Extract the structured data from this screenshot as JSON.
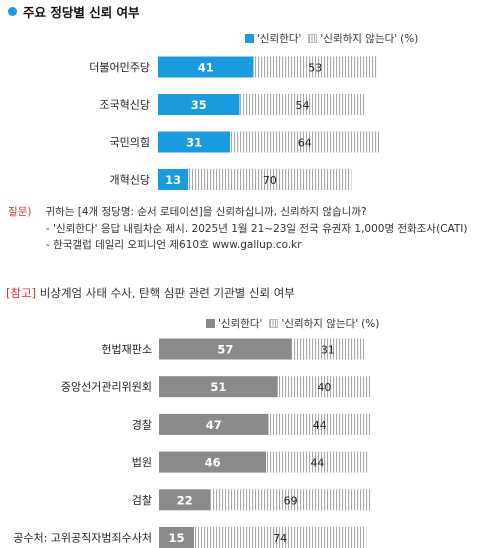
{
  "section1": {
    "title": "주요 정당별 신뢰 여부",
    "legend": {
      "trust": "'신뢰한다'",
      "distrust": "'신뢰하지 않는다'",
      "unit": "(%)"
    }
  },
  "notes": {
    "question_tag": "질문)",
    "question_text": "귀하는 [4개 정당명: 순서 로테이션]을 신뢰하십니까, 신뢰하지 않습니까?",
    "line2": "- '신뢰한다' 응답 내림차순 제시. 2025년 1월 21~23일 전국 유권자 1,000명 전화조사(CATI)",
    "line3": "- 한국갤럽 데일리 오피니언 제610호 www.gallup.co.kr"
  },
  "section2": {
    "tag": "[참고]",
    "title": "비상계엄 사태 수사, 탄핵 심판 관련 기관별 신뢰 여부",
    "legend": {
      "trust": "'신뢰한다'",
      "distrust": "'신뢰하지 않는다'",
      "unit": "(%)"
    }
  },
  "chart_data": [
    {
      "type": "bar",
      "orientation": "horizontal",
      "stacked": true,
      "title": "주요 정당별 신뢰 여부",
      "categories": [
        "더불어민주당",
        "조국혁신당",
        "국민의힘",
        "개혁신당"
      ],
      "series": [
        {
          "name": "'신뢰한다'",
          "values": [
            41,
            35,
            31,
            13
          ],
          "color": "#1a9be0"
        },
        {
          "name": "'신뢰하지 않는다'",
          "values": [
            53,
            54,
            64,
            70
          ],
          "color": "#a8a8a8"
        }
      ],
      "xlim": [
        0,
        100
      ],
      "unit": "(%)",
      "legend": "top-right"
    },
    {
      "type": "bar",
      "orientation": "horizontal",
      "stacked": true,
      "title": "비상계엄 사태 수사, 탄핵 심판 관련 기관별 신뢰 여부",
      "categories": [
        "헌법재판소",
        "중앙선거관리위원회",
        "경찰",
        "법원",
        "검찰",
        "공수처: 고위공직자범죄수사처"
      ],
      "series": [
        {
          "name": "'신뢰한다'",
          "values": [
            57,
            51,
            47,
            46,
            22,
            15
          ],
          "color": "#8a8a8a"
        },
        {
          "name": "'신뢰하지 않는다'",
          "values": [
            31,
            40,
            44,
            44,
            69,
            74
          ],
          "color": "#a8a8a8"
        }
      ],
      "xlim": [
        0,
        100
      ],
      "unit": "(%)",
      "legend": "top-right"
    }
  ]
}
